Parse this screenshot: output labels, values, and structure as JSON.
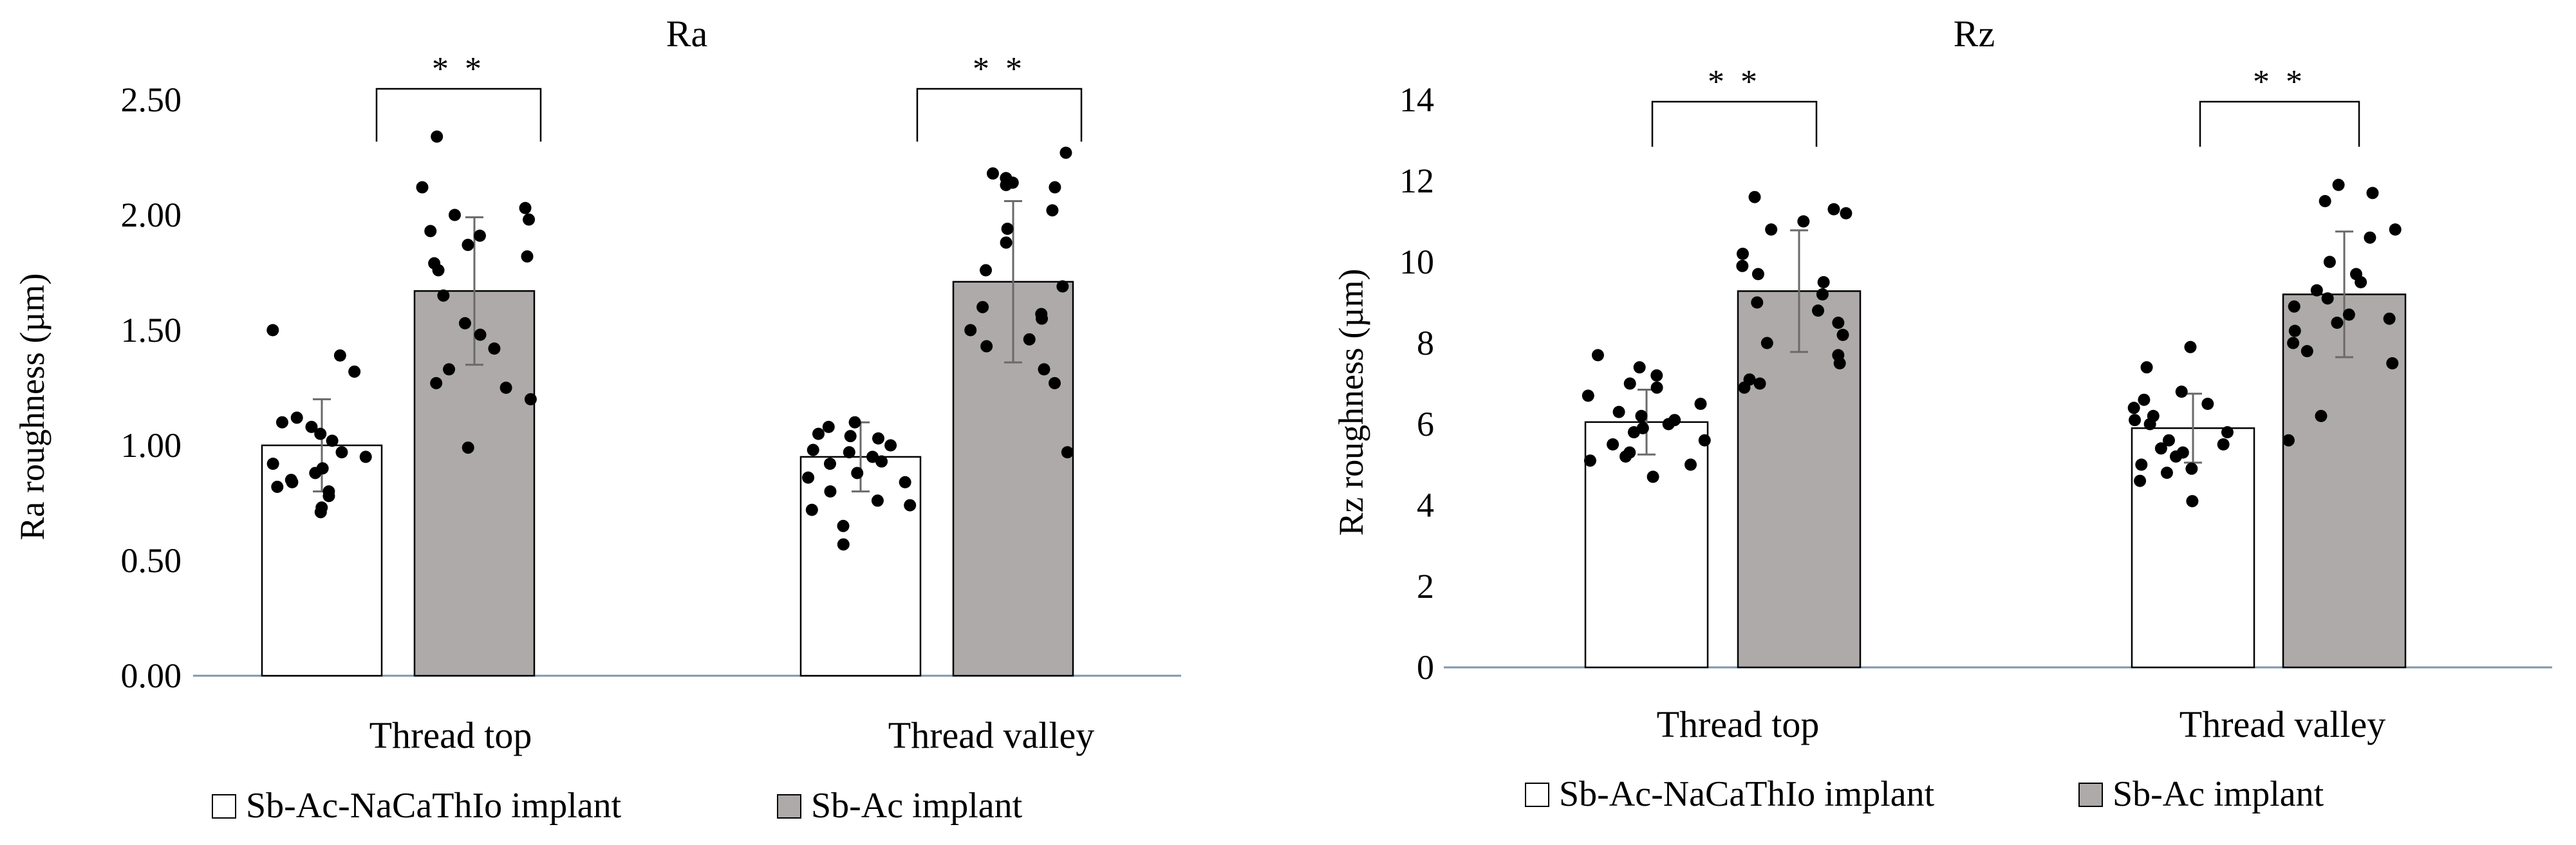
{
  "chart_data": [
    {
      "type": "bar",
      "title": "Ra",
      "xlabel": "",
      "ylabel": "Ra roughness (µm)",
      "ylim": [
        0,
        2.5
      ],
      "yticks": [
        0,
        0.5,
        1.0,
        1.5,
        2.0,
        2.5
      ],
      "ytick_labels": [
        "0.00",
        "0.50",
        "1.00",
        "1.50",
        "2.00",
        "2.50"
      ],
      "categories": [
        "Thread top",
        "Thread valley"
      ],
      "series": [
        {
          "name": "Sb-Ac-NaCaThIo implant",
          "color": "#ffffff",
          "values": [
            1.0,
            0.95
          ],
          "error": [
            0.2,
            0.15
          ]
        },
        {
          "name": "Sb-Ac implant",
          "color": "#aeaaaa",
          "values": [
            1.67,
            1.71
          ],
          "error": [
            0.32,
            0.35
          ]
        }
      ],
      "significance": [
        {
          "category": "Thread top",
          "label": "* *"
        },
        {
          "category": "Thread valley",
          "label": "* *"
        }
      ],
      "points": [
        {
          "category": 0,
          "series": 0,
          "values": [
            0.71,
            0.78,
            0.82,
            0.84,
            0.88,
            0.9,
            0.92,
            0.95,
            1.02,
            1.08,
            1.12,
            1.32,
            1.39,
            1.5,
            0.73,
            0.85,
            0.97,
            1.1,
            0.8,
            1.05
          ]
        },
        {
          "category": 0,
          "series": 1,
          "values": [
            2.34,
            2.12,
            2.03,
            1.98,
            1.93,
            1.87,
            1.82,
            1.76,
            1.53,
            1.48,
            1.42,
            1.33,
            1.27,
            1.2,
            0.99,
            1.65,
            1.91,
            2.0,
            1.79,
            1.25
          ]
        },
        {
          "category": 1,
          "series": 0,
          "values": [
            0.57,
            0.65,
            0.72,
            0.74,
            0.8,
            0.84,
            0.88,
            0.92,
            0.95,
            0.97,
            1.0,
            1.03,
            1.05,
            1.08,
            1.1,
            0.98,
            0.86,
            1.04,
            0.93,
            0.76
          ]
        },
        {
          "category": 1,
          "series": 1,
          "values": [
            2.27,
            2.18,
            2.16,
            2.14,
            2.13,
            2.02,
            1.94,
            1.88,
            1.76,
            1.6,
            1.57,
            1.5,
            1.43,
            1.33,
            1.27,
            0.97,
            1.69,
            2.12,
            1.55,
            1.46
          ]
        }
      ]
    },
    {
      "type": "bar",
      "title": "Rz",
      "xlabel": "",
      "ylabel": "Rz roughness (µm)",
      "ylim": [
        0,
        14
      ],
      "yticks": [
        0,
        2,
        4,
        6,
        8,
        10,
        12,
        14
      ],
      "ytick_labels": [
        "0",
        "2",
        "4",
        "6",
        "8",
        "10",
        "12",
        "14"
      ],
      "categories": [
        "Thread top",
        "Thread valley"
      ],
      "series": [
        {
          "name": "Sb-Ac-NaCaThIo implant",
          "color": "#ffffff",
          "values": [
            6.05,
            5.9
          ],
          "error": [
            0.8,
            0.85
          ]
        },
        {
          "name": "Sb-Ac implant",
          "color": "#aeaaaa",
          "values": [
            9.28,
            9.2
          ],
          "error": [
            1.5,
            1.55
          ]
        }
      ],
      "significance": [
        {
          "category": "Thread top",
          "label": "* *"
        },
        {
          "category": "Thread valley",
          "label": "* *"
        }
      ],
      "points": [
        {
          "category": 0,
          "series": 0,
          "values": [
            4.7,
            5.1,
            5.2,
            5.3,
            5.5,
            5.8,
            6.0,
            6.1,
            6.3,
            6.5,
            6.7,
            7.0,
            7.2,
            7.4,
            7.7,
            5.6,
            6.2,
            5.0,
            6.9,
            5.9
          ]
        },
        {
          "category": 0,
          "series": 1,
          "values": [
            11.6,
            11.3,
            11.2,
            10.8,
            10.2,
            9.7,
            9.5,
            9.2,
            8.8,
            8.2,
            8.0,
            7.7,
            7.0,
            6.9,
            7.1,
            9.9,
            11.0,
            8.5,
            7.5,
            9.0
          ]
        },
        {
          "category": 1,
          "series": 0,
          "values": [
            4.1,
            4.6,
            4.8,
            4.9,
            5.0,
            5.2,
            5.4,
            5.6,
            5.8,
            6.0,
            6.2,
            6.4,
            6.5,
            6.6,
            6.8,
            7.4,
            7.9,
            5.3,
            6.1,
            5.5
          ]
        },
        {
          "category": 1,
          "series": 1,
          "values": [
            11.9,
            11.7,
            11.5,
            10.8,
            10.6,
            9.5,
            9.3,
            9.1,
            8.9,
            8.6,
            8.3,
            8.0,
            7.8,
            6.2,
            5.6,
            9.7,
            8.5,
            10.0,
            8.7,
            7.5
          ]
        }
      ]
    }
  ],
  "legend": {
    "items": [
      {
        "label": "Sb-Ac-NaCaThIo implant",
        "color": "#ffffff"
      },
      {
        "label": "Sb-Ac implant",
        "color": "#aeaaaa"
      }
    ]
  }
}
